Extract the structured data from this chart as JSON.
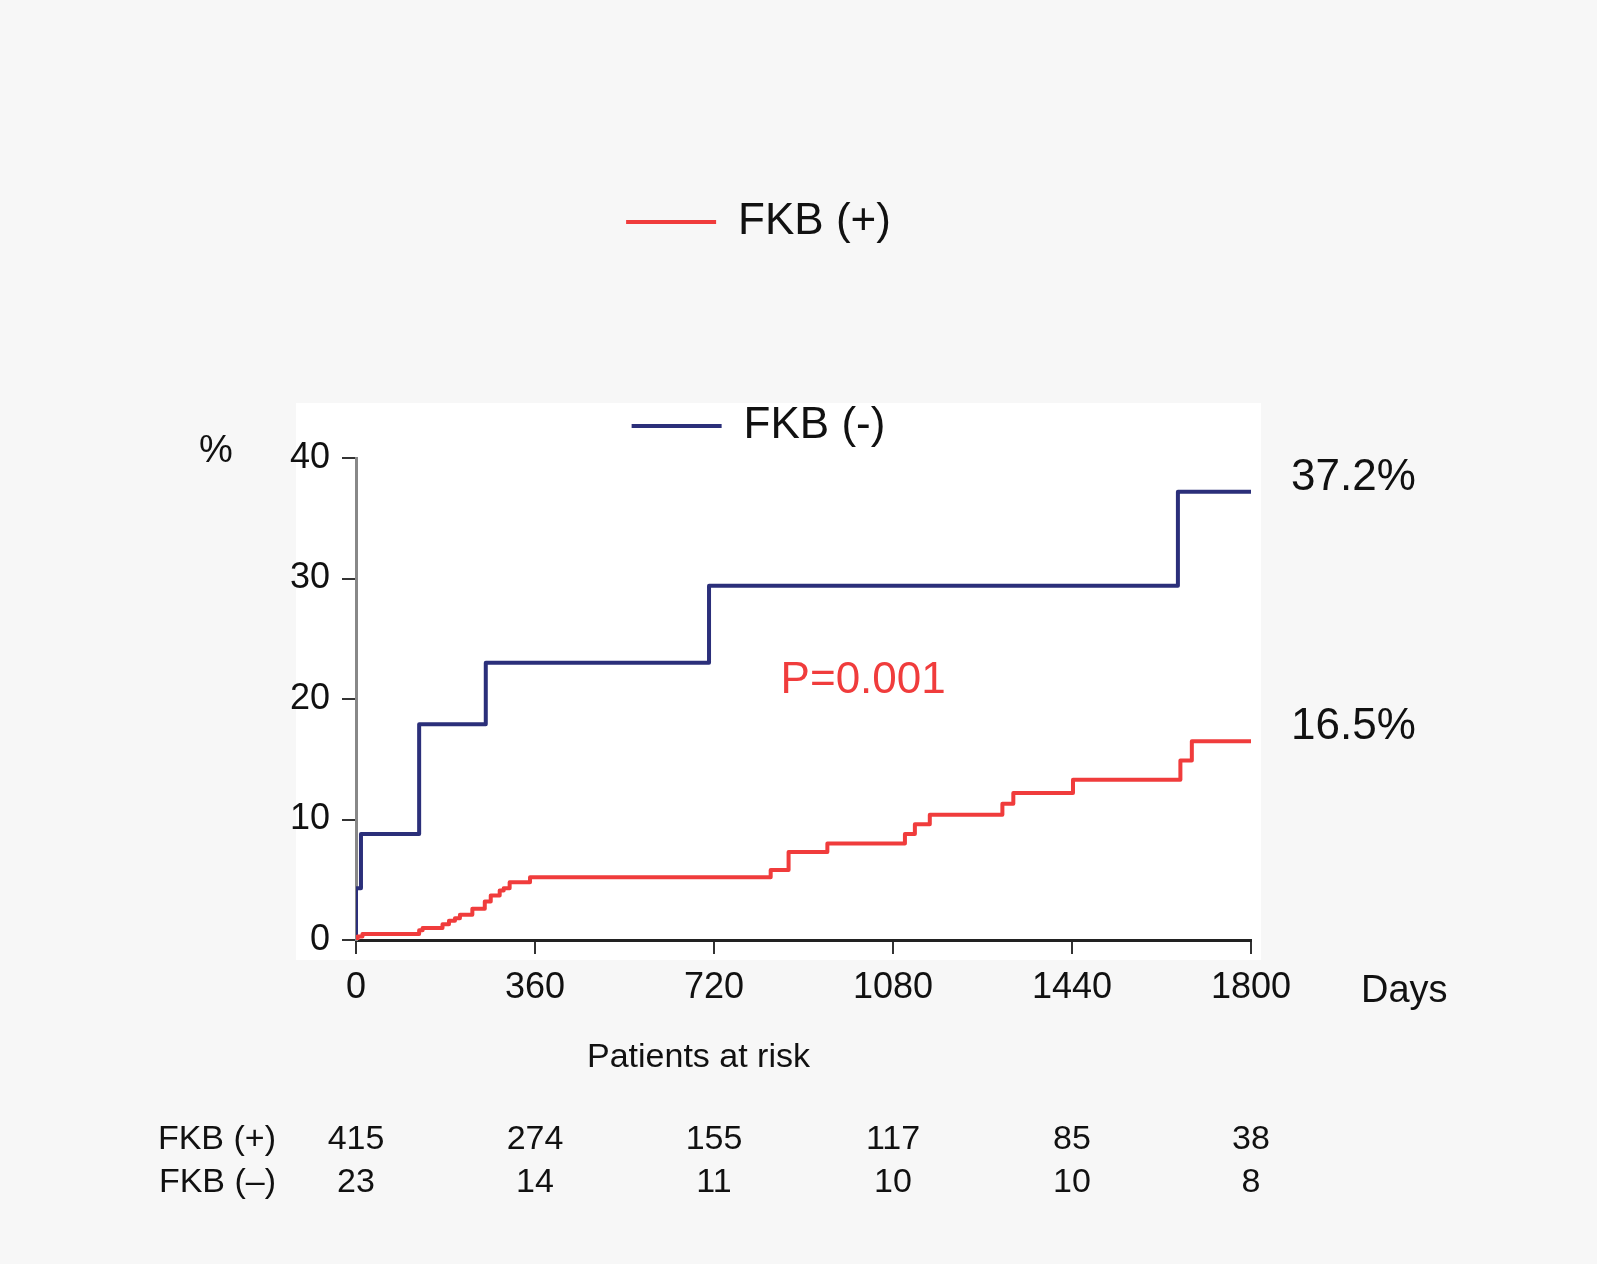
{
  "chart_data": {
    "type": "step",
    "xlabel": "Days",
    "ylabel": "%",
    "xlim": [
      0,
      1800
    ],
    "xticks": [
      0,
      360,
      720,
      1080,
      1440,
      1800
    ],
    "ylim": [
      0,
      40
    ],
    "yticks": [
      0,
      10,
      20,
      30,
      40
    ],
    "grid": false,
    "legend": "top",
    "marker": "none",
    "line_style": "solid",
    "series": [
      {
        "name": "FKB (+)",
        "color": "#f03c3c",
        "x": [
          0,
          3,
          13,
          127,
          134,
          174,
          187,
          199,
          209,
          234,
          259,
          271,
          289,
          297,
          309,
          350,
          834,
          870,
          948,
          1104,
          1124,
          1154,
          1300,
          1322,
          1442,
          1658,
          1681,
          1800
        ],
        "values": [
          0,
          0.3,
          0.5,
          0.8,
          1.0,
          1.3,
          1.6,
          1.8,
          2.1,
          2.6,
          3.2,
          3.7,
          4.1,
          4.3,
          4.8,
          5.2,
          5.8,
          7.3,
          8.0,
          8.8,
          9.6,
          10.4,
          11.3,
          12.2,
          13.3,
          14.9,
          16.5,
          16.5
        ]
      },
      {
        "name": "FKB (-)",
        "color": "#2b2f7a",
        "x": [
          0,
          0,
          10,
          127,
          261,
          710,
          1653,
          1800
        ],
        "values": [
          0,
          4.3,
          8.8,
          17.9,
          23.0,
          29.4,
          37.2,
          37.2
        ]
      }
    ],
    "annotations": [
      {
        "text": "37.2%",
        "x": 1800,
        "y": 37.2
      },
      {
        "text": "16.5%",
        "x": 1800,
        "y": 16.5
      },
      "P=0.001",
      "Patients at risk",
      "FKB (+)",
      "415",
      "274",
      "155",
      "117",
      "85",
      "38",
      "FKB (–)",
      "23",
      "14",
      "11",
      "10",
      "10",
      "8"
    ]
  }
}
